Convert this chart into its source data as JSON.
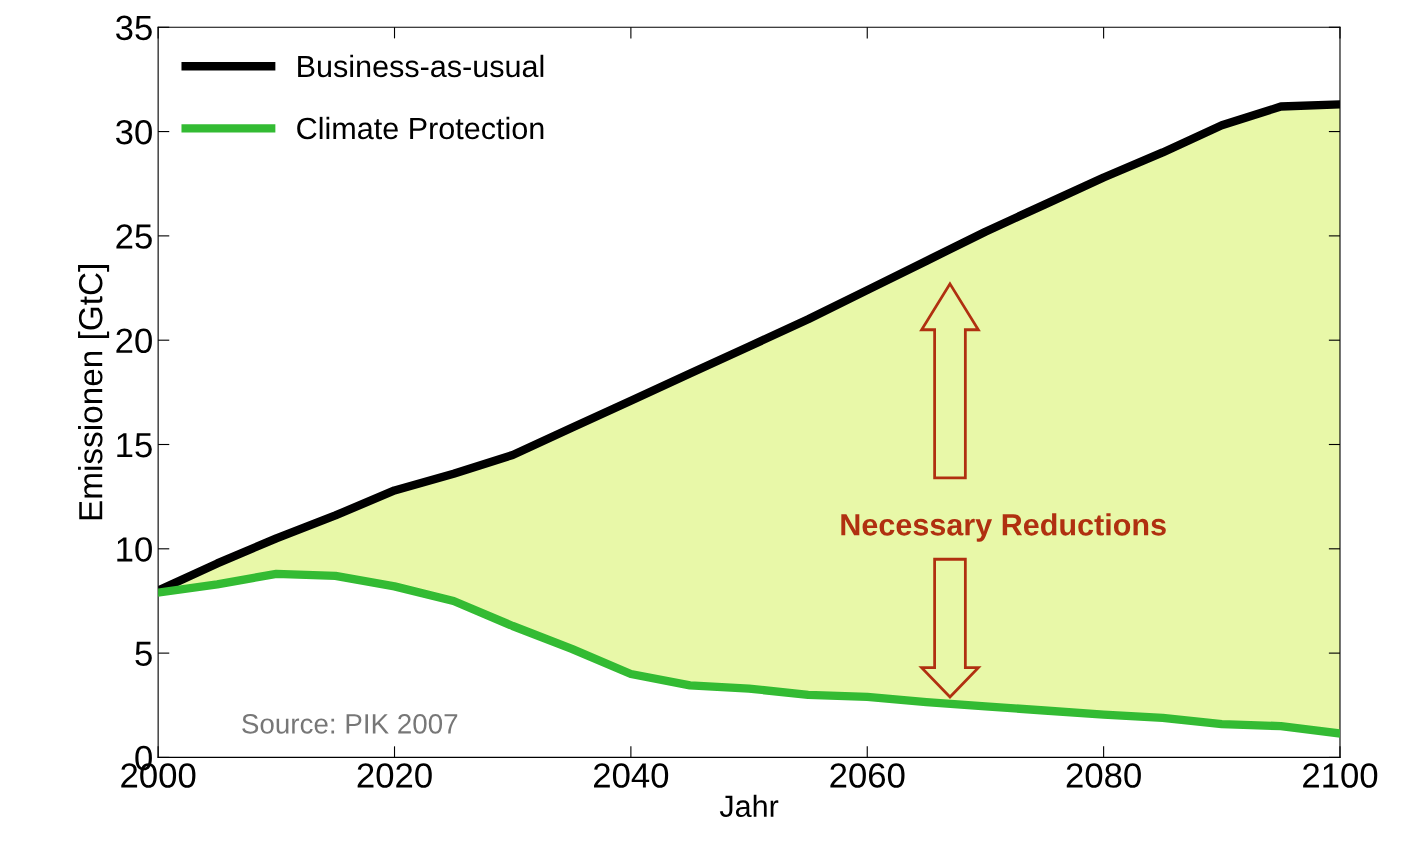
{
  "chart_data": {
    "type": "line",
    "xlabel": "Jahr",
    "ylabel": "Emissionen [GtC]",
    "x": [
      2000,
      2005,
      2010,
      2015,
      2020,
      2025,
      2030,
      2035,
      2040,
      2045,
      2050,
      2055,
      2060,
      2065,
      2070,
      2075,
      2080,
      2085,
      2090,
      2095,
      2100
    ],
    "series": [
      {
        "name": "Business-as-usual",
        "color": "#000000",
        "values": [
          8.0,
          9.3,
          10.5,
          11.6,
          12.8,
          13.6,
          14.5,
          15.8,
          17.1,
          18.4,
          19.7,
          21.0,
          22.4,
          23.8,
          25.2,
          26.5,
          27.8,
          29.0,
          30.3,
          31.2,
          31.3
        ],
        "lower": [
          7.9,
          8.3,
          8.8,
          8.7,
          8.2,
          7.5,
          6.3,
          5.2,
          4.0,
          3.45,
          3.3,
          3.0,
          2.9,
          2.65,
          2.45,
          2.25,
          2.05,
          1.9,
          1.6,
          1.5,
          1.15
        ],
        "upper": [
          8.0,
          9.3,
          10.5,
          11.6,
          12.8,
          13.6,
          14.5,
          15.8,
          17.1,
          18.4,
          19.7,
          21.0,
          22.4,
          23.8,
          25.2,
          26.5,
          27.8,
          29.0,
          30.3,
          31.2,
          31.3
        ]
      },
      {
        "name": "Climate Protection",
        "color": "#33bb33",
        "values": [
          7.9,
          8.3,
          8.8,
          8.7,
          8.2,
          7.5,
          6.3,
          5.2,
          4.0,
          3.45,
          3.3,
          3.0,
          2.9,
          2.65,
          2.45,
          2.25,
          2.05,
          1.9,
          1.6,
          1.5,
          1.15
        ]
      }
    ],
    "xlim": [
      2000,
      2100
    ],
    "xticks": [
      2000,
      2020,
      2040,
      2060,
      2080,
      2100
    ],
    "ylim": [
      0,
      35
    ],
    "yticks": [
      0,
      5,
      10,
      15,
      20,
      25,
      30,
      35
    ],
    "annotations": [
      "Necessary Reductions",
      "Source: PIK 2007"
    ],
    "legend": "top left",
    "grid": false,
    "marker": "none",
    "line_style": "solid"
  }
}
